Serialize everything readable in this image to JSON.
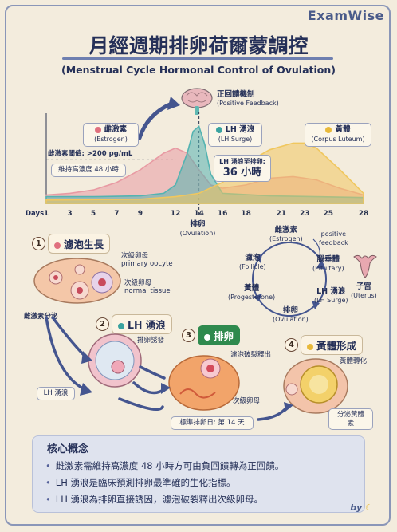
{
  "brand": "ExamWise",
  "title": "月經週期排卵荷爾蒙調控",
  "subtitle": "(Menstrual Cycle Hormonal Control of Ovulation)",
  "feedback": {
    "label": "正回饋機制",
    "sub": "(Positive Feedback)"
  },
  "chart_data": {
    "type": "area",
    "xlabel": "Days",
    "x_ticks": [
      1,
      3,
      5,
      7,
      9,
      12,
      14,
      16,
      18,
      21,
      23,
      25,
      28
    ],
    "series": [
      {
        "name": "雌激素 (Estrogen)",
        "color": "#e89aa3",
        "x": [
          1,
          3,
          5,
          7,
          9,
          11,
          12,
          13,
          14,
          15,
          16,
          18,
          20,
          22,
          24,
          26,
          28
        ],
        "y": [
          10,
          12,
          16,
          25,
          40,
          60,
          66,
          60,
          40,
          22,
          18,
          22,
          30,
          32,
          28,
          18,
          10
        ]
      },
      {
        "name": "LH 湧浪 (LH Surge)",
        "color": "#54b3b1",
        "x": [
          1,
          5,
          9,
          11,
          12,
          13,
          13.5,
          14,
          14.5,
          15,
          16,
          20,
          24,
          28
        ],
        "y": [
          8,
          8,
          9,
          12,
          22,
          60,
          86,
          92,
          70,
          35,
          12,
          9,
          8,
          7
        ]
      },
      {
        "name": "黃體 (Corpus Luteum)",
        "color": "#f0c75e",
        "x": [
          1,
          9,
          12,
          14,
          16,
          18,
          20,
          22,
          23,
          24,
          26,
          28
        ],
        "y": [
          4,
          5,
          8,
          12,
          25,
          48,
          64,
          72,
          72,
          66,
          40,
          12
        ]
      }
    ],
    "annotations": {
      "threshold": "雌激素閾值: >200 pg/mL",
      "sustain": "維持高濃度 48 小時",
      "lh_to_ovulation": "LH 湧浪至排卵:",
      "hours": "36 小時",
      "ovulation": "排卵",
      "ovulation_sub": "(Ovulation)"
    }
  },
  "legend": {
    "estrogen": {
      "label": "雌激素",
      "sub": "(Estrogen)",
      "color": "#e0707e"
    },
    "lh": {
      "label": "LH 湧浪",
      "sub": "(LH Surge)",
      "color": "#3aa3a0"
    },
    "luteum": {
      "label": "黃體",
      "sub": "(Corpus Luteum)",
      "color": "#e8b93a"
    }
  },
  "cycle": {
    "estrogen": {
      "label": "雌激素",
      "sub": "(Estrogen)"
    },
    "positive": {
      "label": "positive",
      "sub": "feedback"
    },
    "pituitary": {
      "label": "腦垂體",
      "sub": "(Pituitary)"
    },
    "lh": {
      "label": "LH 湧浪",
      "sub": "(LH Surge)"
    },
    "ovulation": {
      "label": "排卵",
      "sub": "(Ovulation)"
    },
    "progesterone": {
      "label": "黃體",
      "sub": "(Progesterone)"
    },
    "follicle": {
      "label": "濾泡",
      "sub": "(Follicle)"
    },
    "uterus": {
      "label": "子宮",
      "sub": "(Uterus)"
    }
  },
  "steps": {
    "s1": {
      "num": "1",
      "label": "濾泡生長"
    },
    "s2": {
      "num": "2",
      "label": "LH 湧浪"
    },
    "s3": {
      "num": "3",
      "label": "排卵"
    },
    "s4": {
      "num": "4",
      "label": "黃體形成"
    }
  },
  "step_labels": {
    "secondary_oocyte": "次級卵母",
    "primary_oocyte": "primary oocyte",
    "secondary_oocyte2": "次級卵母",
    "normal_tissue": "normal tissue",
    "estrogen_secretion": "雌激素分泌",
    "trigger": "排卵誘發",
    "lh_surge": "LH 湧浪",
    "rupture": "濾泡破裂釋出",
    "secondary_oocyte3": "次級卵母",
    "standard_day": "標準排卵日: 第 14 天",
    "luteal_transform": "黃體轉化",
    "secrete_progesterone": "分泌黃體素"
  },
  "concepts": {
    "title": "核心概念",
    "items": [
      "雌激素需維持高濃度 48 小時方可由負回饋轉為正回饋。",
      "LH 湧浪是臨床預測排卵最準確的生化指標。",
      "LH 湧浪為排卵直接誘因，濾泡破裂釋出次級卵母。"
    ]
  },
  "by": "by"
}
